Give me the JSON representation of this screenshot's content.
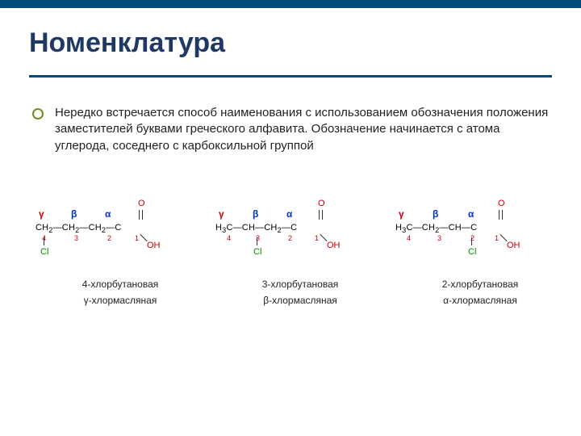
{
  "title": "Номенклатура",
  "intro": "Нередко встречается способ наименования с использованием обозначения положения заместителей буквами греческого алфавита. Обозначение начинается с атома углерода, соседнего с карбоксильной группой",
  "greek": {
    "gamma": "γ",
    "beta": "β",
    "alpha": "α"
  },
  "labels": {
    "oxygen": "O",
    "oh": "OH",
    "cl": "Cl"
  },
  "nums": [
    "4",
    "3",
    "2",
    "1"
  ],
  "struct1": {
    "chain_html": "CH<sub>2</sub>—CH<sub>2</sub>—CH<sub>2</sub>—C",
    "name1": "4-хлорбутановая",
    "name2": "γ-хлормасляная"
  },
  "struct2": {
    "chain_html": "H<sub>3</sub>C—CH—CH<sub>2</sub>—C",
    "name1": "3-хлорбутановая",
    "name2": "β-хлормасляная"
  },
  "struct3": {
    "chain_html": "H<sub>3</sub>C—CH<sub>2</sub>—CH—C",
    "name1": "2-хлорбутановая",
    "name2": "α-хлормасляная"
  },
  "colors": {
    "bar": "#004b7a",
    "title": "#1f3864",
    "bullet": "#6b8e23",
    "red": "#cc0000",
    "blue": "#0033cc",
    "green": "#008800"
  }
}
